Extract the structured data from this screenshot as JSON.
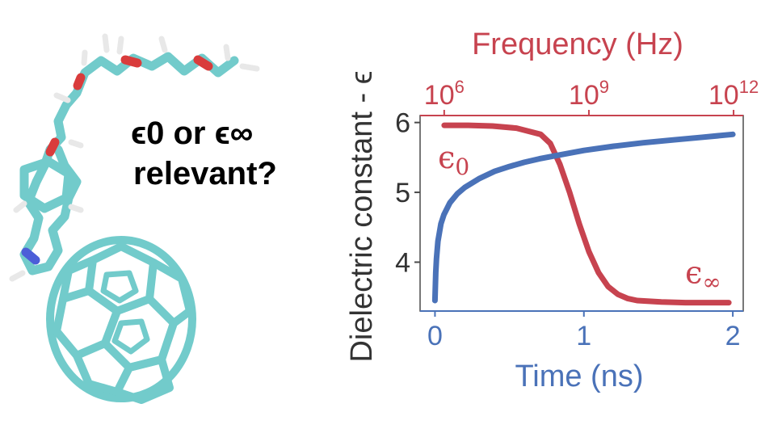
{
  "question": {
    "line1": "ϵ0  or  ϵ∞",
    "line2": "relevant?"
  },
  "colors": {
    "time_series": "#4a72b8",
    "frequency_series": "#c7434f",
    "molecule_carbon": "#72cbcb",
    "molecule_oxygen": "#d93c3c",
    "molecule_nitrogen": "#4c5ed8"
  },
  "chart_data": {
    "type": "line",
    "title": "",
    "xlabel": "Time (ns)",
    "x2label": "Frequency (Hz)",
    "ylabel": "Dielectric constant - ϵ",
    "xlim": [
      -0.1,
      2.07
    ],
    "x2lim_log10": [
      5.5,
      12.2
    ],
    "ylim": [
      3.3,
      6.1
    ],
    "x_ticks": [
      0,
      1,
      2
    ],
    "y_ticks": [
      4,
      5,
      6
    ],
    "x2_ticks": [
      {
        "exp": 6,
        "label_base": "10",
        "label_exp": "6"
      },
      {
        "exp": 9,
        "label_base": "10",
        "label_exp": "9"
      },
      {
        "exp": 12,
        "label_base": "10",
        "label_exp": "12"
      }
    ],
    "series": [
      {
        "name": "ϵ0 / ϵ∞",
        "axis": "frequency",
        "x_log10_hz": [
          6.0,
          6.5,
          7.0,
          7.5,
          8.0,
          8.2,
          8.4,
          8.6,
          8.8,
          9.0,
          9.2,
          9.4,
          9.6,
          9.8,
          10.0,
          10.5,
          11.0,
          11.5,
          11.9
        ],
        "y": [
          5.96,
          5.96,
          5.95,
          5.92,
          5.83,
          5.7,
          5.4,
          5.0,
          4.55,
          4.15,
          3.85,
          3.65,
          3.54,
          3.48,
          3.45,
          3.43,
          3.42,
          3.42,
          3.42
        ]
      },
      {
        "name": "",
        "axis": "time",
        "x_ns": [
          0.0,
          0.005,
          0.01,
          0.02,
          0.04,
          0.06,
          0.1,
          0.15,
          0.2,
          0.3,
          0.4,
          0.5,
          0.6,
          0.7,
          0.8,
          1.0,
          1.2,
          1.4,
          1.6,
          1.8,
          2.0
        ],
        "y": [
          3.45,
          3.85,
          4.05,
          4.3,
          4.55,
          4.68,
          4.85,
          4.98,
          5.07,
          5.2,
          5.3,
          5.37,
          5.43,
          5.48,
          5.52,
          5.6,
          5.66,
          5.71,
          5.75,
          5.79,
          5.83
        ]
      }
    ],
    "annotations": [
      {
        "base": "ϵ",
        "sub": "0",
        "near": "upper-left"
      },
      {
        "base": "ϵ",
        "sub": "∞",
        "near": "lower-right"
      }
    ],
    "grid": false,
    "legend": "none"
  }
}
